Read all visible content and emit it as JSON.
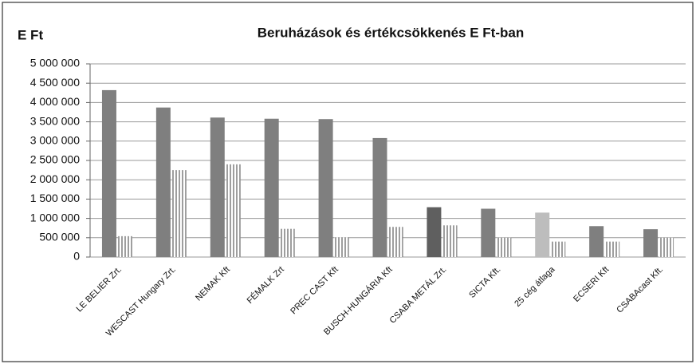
{
  "chart_data": {
    "type": "bar",
    "title": "Beruházások és értékcsökkenés E Ft-ban",
    "y_label": "E Ft",
    "categories": [
      "LE BELIER Zrt.",
      "WESCAST Hungary Zrt.",
      "NEMAK  Kft",
      "FÉMALK Zrt",
      "PREC CAST Kft",
      "BUSCH-HUNGÁRIA Kft",
      "CSABA METÁL Zrt.",
      "SICTA Kft.",
      "25 cég átlaga",
      "ECSERI Kft",
      "CSABAcast Kft."
    ],
    "series": [
      {
        "color": "#7f7f7f",
        "colors": [
          "#7f7f7f",
          "#7f7f7f",
          "#7f7f7f",
          "#7f7f7f",
          "#7f7f7f",
          "#7f7f7f",
          "#5f5f5f",
          "#7f7f7f",
          "#bdbdbd",
          "#7f7f7f",
          "#7f7f7f"
        ],
        "values": [
          4320000,
          3870000,
          3610000,
          3580000,
          3570000,
          3080000,
          1290000,
          1250000,
          1150000,
          800000,
          720000
        ]
      },
      {
        "color": "#6a6a6a",
        "pattern": "vertical-stripes",
        "values": [
          540000,
          2250000,
          2400000,
          730000,
          510000,
          780000,
          820000,
          500000,
          400000,
          400000,
          500000
        ]
      }
    ],
    "ylim": [
      0,
      5000000
    ],
    "yticks": [
      0,
      {
        "value": 500000,
        "label": "500 000"
      },
      {
        "value": 1000000,
        "label": "1 000 000"
      },
      {
        "value": 1500000,
        "label": "1 500 000"
      },
      {
        "value": 2000000,
        "label": "2 000 000"
      },
      {
        "value": 2500000,
        "label": "2 500 000"
      },
      {
        "value": 3000000,
        "label": "3 000 000"
      },
      {
        "value": 3500000,
        "label": "3 500 000"
      },
      {
        "value": 4000000,
        "label": "4 000 000"
      },
      {
        "value": 4500000,
        "label": "4 500 000"
      },
      {
        "value": 5000000,
        "label": "5 000 000"
      }
    ],
    "grid": true
  }
}
